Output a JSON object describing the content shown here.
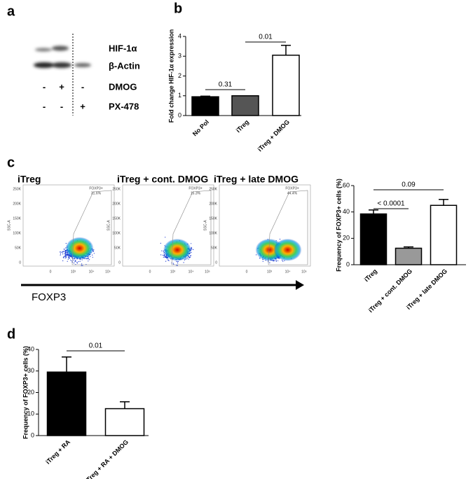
{
  "panel_labels": [
    "a",
    "b",
    "c",
    "d"
  ],
  "blot": {
    "bands": [
      "HIF-1α",
      "β-Actin"
    ],
    "rows": [
      {
        "name": "DMOG",
        "signs": [
          "-",
          "+",
          "-"
        ]
      },
      {
        "name": "PX-478",
        "signs": [
          "-",
          "-",
          "+"
        ]
      }
    ]
  },
  "flow": {
    "titles": [
      "iTreg",
      "iTreg + cont. DMOG",
      "iTreg + late DMOG"
    ],
    "gate": "FOXP3+",
    "percents": [
      "31.6%",
      "15.3%",
      "44.4%"
    ],
    "y_label": "SSC-A",
    "y_tick_labels": [
      "250K",
      "200K",
      "150K",
      "100K",
      "50K",
      "0"
    ],
    "x_tick_labels": [
      "0",
      "10³",
      "10⁴",
      "10⁵"
    ],
    "x_label": "FOXP3"
  },
  "chart_data": [
    {
      "type": "bar",
      "ylabel": "Fold change HIF-1α expression",
      "categories": [
        "No Pol",
        "iTreg",
        "iTreg + DMOG"
      ],
      "values": [
        0.95,
        1.0,
        3.05
      ],
      "errors": [
        0.03,
        0,
        0.5
      ],
      "colors": [
        "#000000",
        "#555555",
        "#ffffff"
      ],
      "ylim": [
        0,
        4
      ],
      "yticks": [
        0,
        1,
        2,
        3,
        4
      ],
      "annotations": [
        "0.31",
        "0.01"
      ]
    },
    {
      "type": "bar",
      "ylabel": "Frequency of FOXP3+ cells (%)",
      "categories": [
        "iTreg",
        "iTreg + cont. DMOG",
        "iTreg + late DMOG"
      ],
      "values": [
        38.5,
        12.5,
        45
      ],
      "errors": [
        3,
        1,
        4.5
      ],
      "colors": [
        "#000000",
        "#999999",
        "#ffffff"
      ],
      "ylim": [
        0,
        60
      ],
      "yticks": [
        0,
        20,
        40,
        60
      ],
      "annotations": [
        "< 0.0001",
        "0.09"
      ]
    },
    {
      "type": "bar",
      "ylabel": "Frequency of FOXP3+ cells (%)",
      "categories": [
        "iTreg + RA",
        "iTreg + RA + DMOG"
      ],
      "values": [
        29.5,
        12.5
      ],
      "errors": [
        7,
        3.2
      ],
      "colors": [
        "#000000",
        "#ffffff"
      ],
      "ylim": [
        0,
        40
      ],
      "yticks": [
        0,
        10,
        20,
        30,
        40
      ],
      "annotations": [
        "0.01"
      ]
    }
  ]
}
